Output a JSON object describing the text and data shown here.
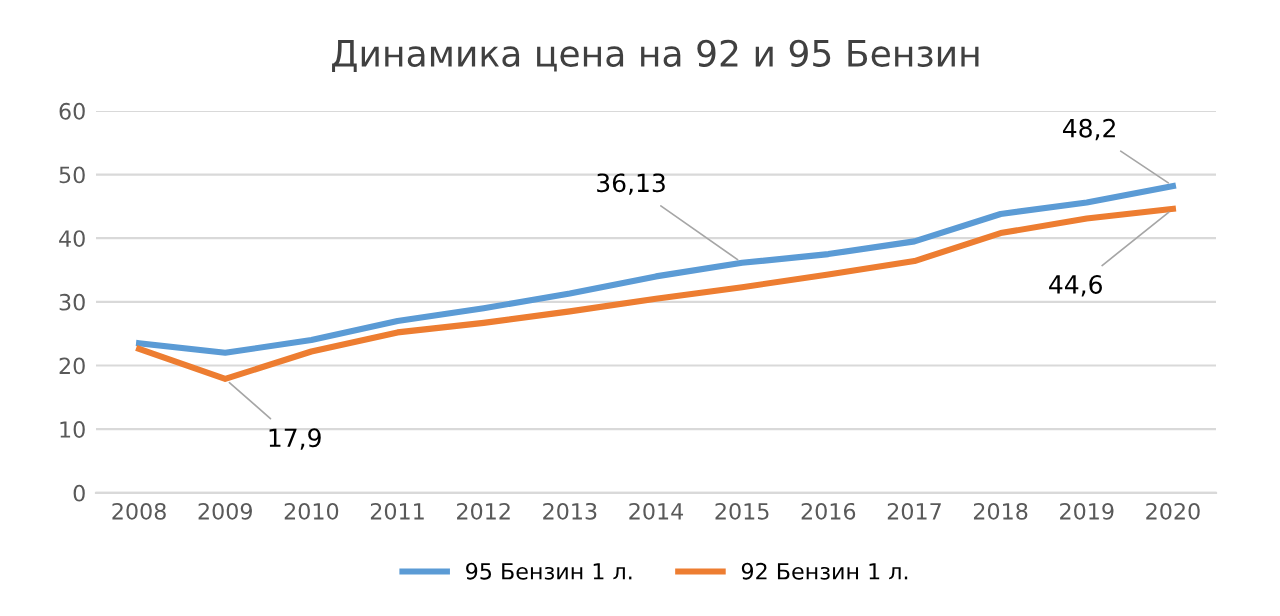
{
  "chart_data": {
    "type": "line",
    "title": "Динамика цена на 92 и 95 Бензин",
    "categories": [
      "2008",
      "2009",
      "2010",
      "2011",
      "2012",
      "2013",
      "2014",
      "2015",
      "2016",
      "2017",
      "2018",
      "2019",
      "2020"
    ],
    "series": [
      {
        "name": "95 Бензин 1 л.",
        "color": "#5b9bd5",
        "values": [
          23.5,
          22,
          24,
          27,
          29,
          31.3,
          34,
          36.13,
          37.5,
          39.5,
          43.8,
          45.6,
          48.2
        ]
      },
      {
        "name": "92 Бензин 1 л.",
        "color": "#ed7d31",
        "values": [
          22.6,
          17.9,
          22.2,
          25.2,
          26.7,
          28.5,
          30.5,
          32.3,
          34.3,
          36.4,
          40.8,
          43.1,
          44.6
        ]
      }
    ],
    "ylim": [
      0,
      60
    ],
    "yticks": [
      0,
      10,
      20,
      30,
      40,
      50,
      60
    ],
    "grid": "y",
    "legend": "bottom",
    "marker": "none",
    "line_style": "solid",
    "annotations": [
      {
        "text": "17,9",
        "x": "2009",
        "y": 17.9
      },
      {
        "text": "36,13",
        "x": "2015",
        "y": 36.13
      },
      {
        "text": "48,2",
        "x": "2020",
        "y": 48.2
      },
      {
        "text": "44,6",
        "x": "2020",
        "y": 44.6
      }
    ]
  }
}
